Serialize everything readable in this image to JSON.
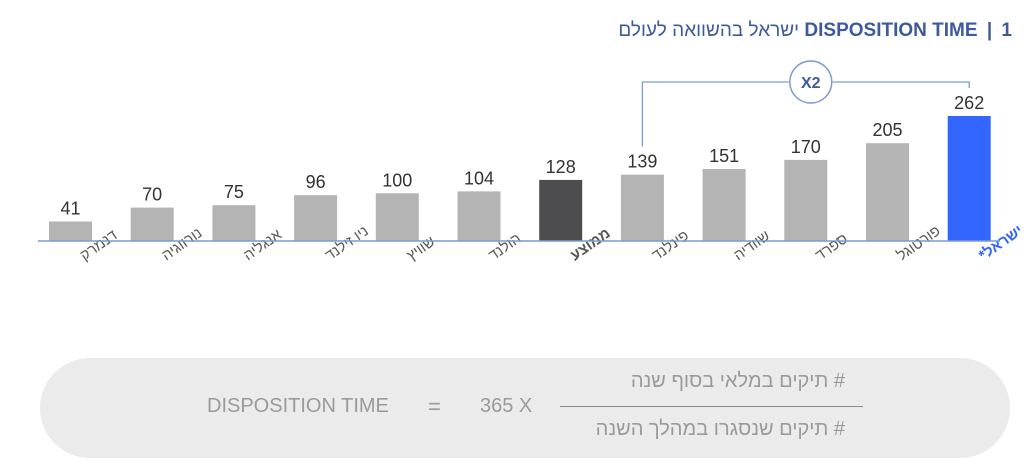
{
  "title": {
    "number": "1",
    "separator": "|",
    "en": "DISPOSITION TIME",
    "he": "ישראל בהשוואה לעולם"
  },
  "colors": {
    "bar": "#b4b4b4",
    "average": "#4d4d4f",
    "highlight": "#3366ff",
    "axis": "#7c9ad6",
    "bracket": "#7c9ad6",
    "title": "#3d5a9e",
    "label": "#595959",
    "value": "#333333"
  },
  "annotation": {
    "label": "X2",
    "from": "פינלנד",
    "to": "ישראל*"
  },
  "chart_data": {
    "type": "bar",
    "categories": [
      "דנמרק",
      "נורווגיה",
      "אנגליה",
      "ניו זילנד",
      "שוויץ",
      "הולנד",
      "ממוצע",
      "פינלנד",
      "שוודיה",
      "ספרד",
      "פורטוגל",
      "ישראל*"
    ],
    "values": [
      41,
      70,
      75,
      96,
      100,
      104,
      128,
      139,
      151,
      170,
      205,
      262
    ],
    "average_category": "ממוצע",
    "highlight_category": "ישראל*",
    "ylim": [
      0,
      262
    ]
  },
  "formula": {
    "label": "DISPOSITION TIME",
    "equals": "=",
    "multiplier": "365 X",
    "numerator": "# תיקים במלאי בסוף שנה",
    "denominator": "# תיקים שנסגרו במהלך השנה"
  }
}
